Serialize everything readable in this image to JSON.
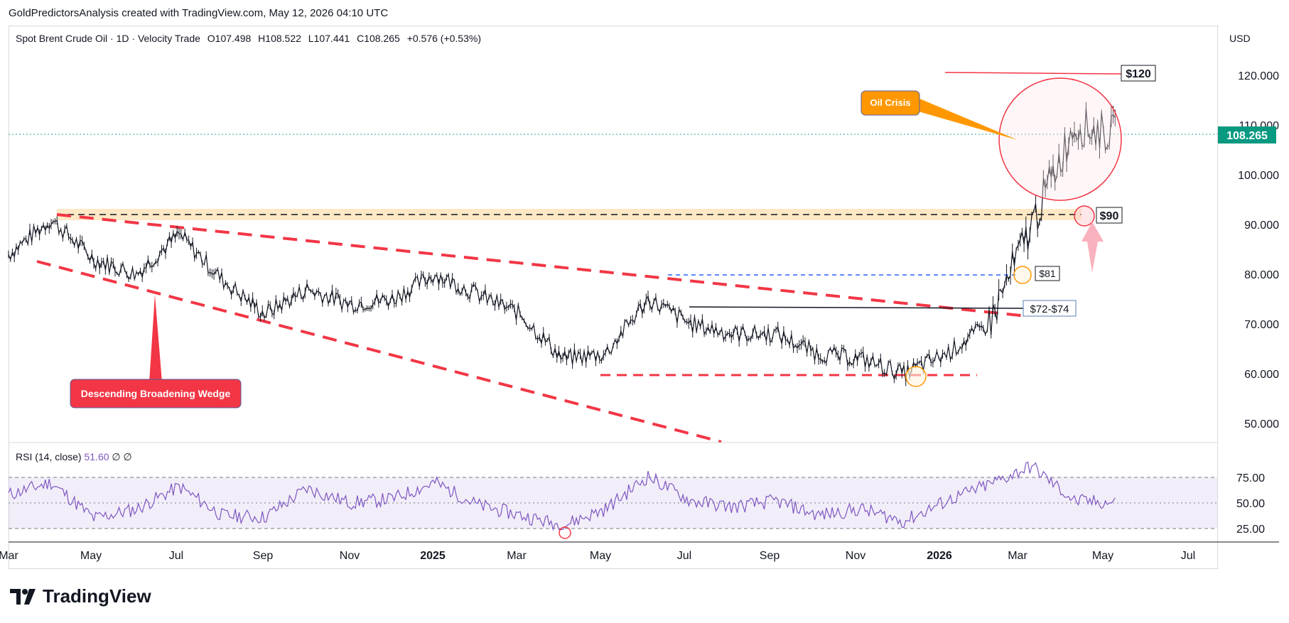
{
  "header": {
    "text": "GoldPredictorsAnalysis created with TradingView.com, May 12, 2026 04:10 UTC"
  },
  "legend": {
    "symbol": "Spot Brent Crude Oil · 1D · Velocity Trade",
    "open": "O107.498",
    "high": "H108.522",
    "low": "L107.441",
    "close": "C108.265",
    "change": "+0.576 (+0.53%)"
  },
  "currency": "USD",
  "last_price": "108.265",
  "rsi": {
    "label": "RSI (14, close)",
    "value": "51.60",
    "extra1": "∅",
    "extra2": "∅"
  },
  "annotations": {
    "wedge": "Descending Broadening Wedge",
    "crisis": "Oil Crisis",
    "level_120": "$120",
    "level_90": "$90",
    "level_81": "$81",
    "level_72_74": "$72-$74"
  },
  "brand": "TradingView",
  "colors": {
    "up": "#26a69a",
    "candle": "#131722",
    "wedge": "#f23645",
    "rsi": "#7e57c2",
    "price_tag": "#089981",
    "crisis": "#ff9800"
  },
  "chart_data": {
    "type": "line",
    "title": "Spot Brent Crude Oil · 1D · Velocity Trade",
    "ylim": [
      45,
      126
    ],
    "y_ticks": [
      "120.000",
      "110.000",
      "100.000",
      "90.000",
      "80.000",
      "70.000",
      "60.000",
      "50.000"
    ],
    "x_ticks": [
      "Mar",
      "May",
      "Jul",
      "Sep",
      "Nov",
      "2025",
      "Mar",
      "May",
      "Jul",
      "Sep",
      "Nov",
      "2026",
      "Mar",
      "May",
      "Jul"
    ],
    "series": [
      {
        "name": "Spot Brent Crude Oil",
        "x": [
          "2024-03",
          "2024-04",
          "2024-05",
          "2024-06",
          "2024-07",
          "2024-08",
          "2024-09",
          "2024-10",
          "2024-11",
          "2024-12",
          "2025-01",
          "2025-02",
          "2025-03",
          "2025-04",
          "2025-05",
          "2025-06",
          "2025-07",
          "2025-08",
          "2025-09",
          "2025-10",
          "2025-11",
          "2025-12",
          "2026-01",
          "2026-02",
          "2026-03",
          "2026-04",
          "2026-05"
        ],
        "values": [
          84,
          91,
          83,
          80,
          88,
          79,
          72,
          77,
          74,
          75,
          80,
          76,
          72,
          63,
          64,
          75,
          70,
          68,
          68,
          64,
          63,
          60,
          64,
          70,
          90,
          110,
          108
        ]
      }
    ],
    "rsi_series": {
      "name": "RSI (14, close)",
      "values": [
        58,
        70,
        35,
        44,
        66,
        38,
        36,
        64,
        50,
        54,
        70,
        48,
        38,
        28,
        44,
        76,
        52,
        46,
        52,
        38,
        44,
        32,
        52,
        68,
        86,
        52,
        50
      ],
      "levels": [
        75,
        50,
        25
      ]
    },
    "levels": [
      {
        "label": "$120",
        "value": 120
      },
      {
        "label": "$90",
        "value": 91.5
      },
      {
        "label": "$81",
        "value": 79.8
      },
      {
        "label": "$72-$74",
        "value": 73
      }
    ]
  }
}
